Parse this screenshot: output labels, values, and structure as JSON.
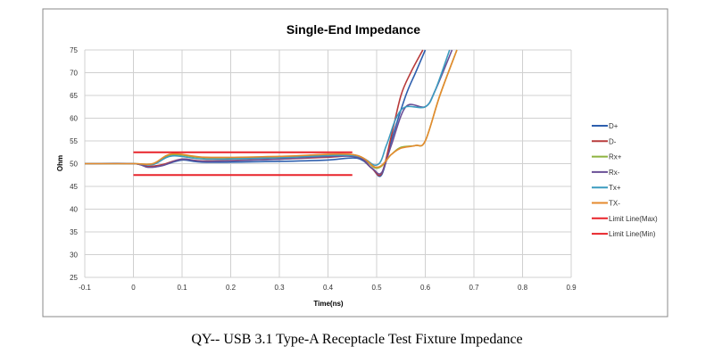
{
  "caption": "QY-- USB 3.1 Type-A Receptacle Test Fixture Impedance",
  "chart_data": {
    "type": "line",
    "title": "Single-End Impedance",
    "xlabel": "Time(ns)",
    "ylabel": "Ohm",
    "xlim": [
      -0.1,
      0.9
    ],
    "ylim": [
      25,
      75
    ],
    "xticks": [
      "-0.1",
      "0",
      "0.1",
      "0.2",
      "0.3",
      "0.4",
      "0.5",
      "0.6",
      "0.7",
      "0.8",
      "0.9"
    ],
    "yticks": [
      "25",
      "30",
      "35",
      "40",
      "45",
      "50",
      "55",
      "60",
      "65",
      "70",
      "75"
    ],
    "grid": true,
    "legend": "right",
    "series": [
      {
        "name": "D+",
        "color": "#2e5fae",
        "x": [
          -0.1,
          0,
          0.03,
          0.06,
          0.1,
          0.15,
          0.3,
          0.4,
          0.46,
          0.49,
          0.51,
          0.53,
          0.56,
          0.58,
          0.6
        ],
        "y": [
          50,
          50,
          49.3,
          49.6,
          50.8,
          50.3,
          50.5,
          50.8,
          51.2,
          49,
          47.5,
          55,
          65,
          70,
          75
        ]
      },
      {
        "name": "D-",
        "color": "#b83b3b",
        "x": [
          -0.1,
          0,
          0.03,
          0.06,
          0.1,
          0.15,
          0.3,
          0.4,
          0.46,
          0.49,
          0.51,
          0.53,
          0.55,
          0.57,
          0.595
        ],
        "y": [
          50,
          50,
          49.4,
          49.8,
          51,
          50.6,
          51,
          51.4,
          51.6,
          49,
          47.8,
          56,
          65,
          70,
          75
        ]
      },
      {
        "name": "Rx+",
        "color": "#8db33f",
        "x": [
          -0.1,
          0,
          0.04,
          0.08,
          0.15,
          0.3,
          0.45,
          0.5,
          0.53,
          0.55,
          0.58,
          0.6,
          0.63,
          0.665
        ],
        "y": [
          50,
          50,
          50,
          52,
          51.3,
          51.5,
          52,
          49,
          52,
          53.6,
          54,
          55,
          65,
          75
        ]
      },
      {
        "name": "Rx-",
        "color": "#6a4f96",
        "x": [
          -0.1,
          0,
          0.03,
          0.06,
          0.1,
          0.15,
          0.3,
          0.45,
          0.49,
          0.51,
          0.53,
          0.56,
          0.6,
          0.62,
          0.655
        ],
        "y": [
          50,
          50,
          49.2,
          49.6,
          51,
          50.5,
          51,
          51.6,
          49,
          48,
          54,
          62.5,
          62.5,
          66,
          75
        ]
      },
      {
        "name": "Tx+",
        "color": "#3b9bbf",
        "x": [
          -0.1,
          0,
          0.04,
          0.08,
          0.15,
          0.3,
          0.45,
          0.5,
          0.52,
          0.54,
          0.56,
          0.6,
          0.62,
          0.65
        ],
        "y": [
          50,
          50,
          49.8,
          51.7,
          51,
          51.3,
          51.8,
          49.7,
          54,
          60,
          62.5,
          62.5,
          66,
          75
        ]
      },
      {
        "name": "TX-",
        "color": "#e58a2e",
        "x": [
          -0.1,
          0,
          0.04,
          0.08,
          0.15,
          0.3,
          0.45,
          0.5,
          0.53,
          0.55,
          0.58,
          0.6,
          0.63,
          0.665
        ],
        "y": [
          50,
          50,
          50,
          52.2,
          51.4,
          51.6,
          52,
          49.2,
          52,
          53.4,
          54,
          55,
          65,
          75
        ]
      },
      {
        "name": "Limit Line(Max)",
        "color": "#e8242a",
        "x": [
          0,
          0.45
        ],
        "y": [
          52.5,
          52.5
        ]
      },
      {
        "name": "Limit Line(Min)",
        "color": "#e8242a",
        "x": [
          0,
          0.45
        ],
        "y": [
          47.5,
          47.5
        ]
      }
    ]
  }
}
